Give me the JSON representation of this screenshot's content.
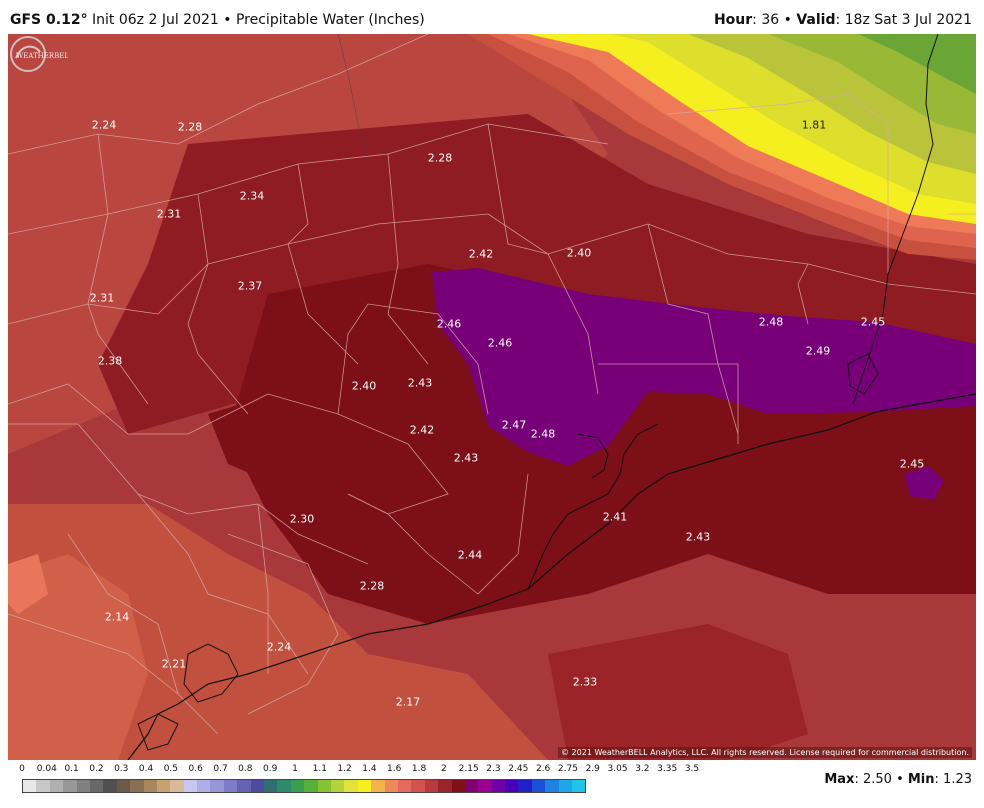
{
  "header": {
    "model": "GFS 0.12",
    "degree": "°",
    "init": "Init 06z 2 Jul 2021",
    "product": "Precipitable Water (Inches)",
    "bullet": "•",
    "hour_label": "Hour",
    "hour": "36",
    "valid_label": "Valid",
    "valid": "18z Sat 3 Jul 2021"
  },
  "map": {
    "labels": [
      "2.24",
      "2.28",
      "2.28",
      "2.34",
      "2.31",
      "2.37",
      "2.42",
      "2.40",
      "2.31",
      "2.38",
      "1.81",
      "2.46",
      "2.46",
      "2.48",
      "2.45",
      "2.49",
      "2.40",
      "2.43",
      "2.42",
      "2.47",
      "2.48",
      "2.43",
      "2.45",
      "2.30",
      "2.41",
      "2.43",
      "2.44",
      "2.28",
      "2.14",
      "2.24",
      "2.21",
      "2.17",
      "2.33"
    ],
    "copyright": "© 2021 WeatherBELL Analytics, LLC. All rights reserved. License required for commercial distribution.",
    "logo_text": "WEATHERBELL"
  },
  "legend": {
    "ticks": [
      "0",
      "0.04",
      "0.1",
      "0.2",
      "0.3",
      "0.4",
      "0.5",
      "0.6",
      "0.7",
      "0.8",
      "0.9",
      "1",
      "1.1",
      "1.2",
      "1.4",
      "1.6",
      "1.8",
      "2",
      "2.15",
      "2.3",
      "2.45",
      "2.6",
      "2.75",
      "2.9",
      "3.05",
      "3.2",
      "3.35",
      "3.5"
    ],
    "colors": [
      "#e8e8e8",
      "#c8c8c8",
      "#b0b0b0",
      "#989898",
      "#808080",
      "#686868",
      "#505050",
      "#6b5a4a",
      "#8a6f54",
      "#a8875e",
      "#c7a26e",
      "#d9b99a",
      "#c9c7f0",
      "#b0aee6",
      "#9896d8",
      "#7e7cc8",
      "#6562b4",
      "#4e4aa0",
      "#2f6f6f",
      "#2e8a6a",
      "#3a9e50",
      "#5aaf3a",
      "#86c232",
      "#b6d23a",
      "#e0e43a",
      "#f6ef20",
      "#f3b24a",
      "#ee8a5a",
      "#e46a5c",
      "#d1524f",
      "#b8393e",
      "#9b2428",
      "#7f1018",
      "#800070",
      "#9a0090",
      "#6e00a8",
      "#4a00b8",
      "#2020c8",
      "#1e50d6",
      "#1e82e0",
      "#1ea6e6",
      "#20c4ea"
    ],
    "max_label": "Max",
    "max": "2.50",
    "min_label": "Min",
    "min": "1.23"
  }
}
